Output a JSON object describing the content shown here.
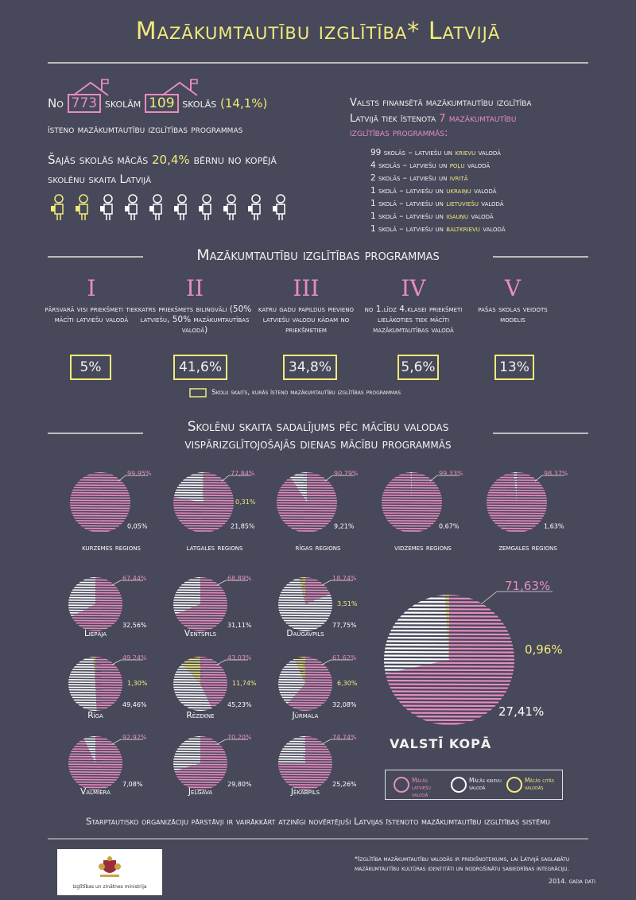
{
  "header": {
    "title": "Mazākumtautību izglītība* Latvijā"
  },
  "stats": {
    "no": "No",
    "schools_total": "773",
    "schools_total_suffix": "skolām",
    "schools_minority": "109",
    "schools_minority_suffix": "skolās",
    "schools_pct": "(14,1%)",
    "line2": "īsteno mazākumtautību izglītības programmas",
    "line3_a": "Šajās skolās mācās",
    "line3_pct": "20,4%",
    "line3_b": "bērnu no kopējā",
    "line4": "skolēnu skaita Latvijā"
  },
  "funding": {
    "line1": "Valsts finansētā mazākumtautību izglītība",
    "line2_a": "Latvijā tiek īstenota",
    "line2_num": "7",
    "line2_b": "mazākumtautību",
    "line3": "izglītības programmās:",
    "items": [
      {
        "pre": "99 skolās – latviešu un",
        "lang": "krievu",
        "post": "valodā"
      },
      {
        "pre": "4 skolās – latviešu un",
        "lang": "poļu",
        "post": "valodā"
      },
      {
        "pre": "2 skolās – latviešu un",
        "lang": "ivritā",
        "post": ""
      },
      {
        "pre": "1 skolā – latviešu un",
        "lang": "ukraiņu",
        "post": "valodā"
      },
      {
        "pre": "1 skolā – latviešu un",
        "lang": "lietuviešu",
        "post": "valodā"
      },
      {
        "pre": "1 skolā – latviešu un",
        "lang": "igauņu",
        "post": "valodā"
      },
      {
        "pre": "1 skolā – latviešu un",
        "lang": "baltkrievu",
        "post": "valodā"
      }
    ]
  },
  "programs": {
    "title": "Mazākumtautību izglītības programmas",
    "items": [
      {
        "roman": "I",
        "desc": "pārsvarā visi priekšmeti tiek mācīti latviešu valodā",
        "pct": "5%"
      },
      {
        "roman": "II",
        "desc": "katrs priekšmets bilingvāli (50% latviešu, 50% mazākumtautības valodā)",
        "pct": "41,6%"
      },
      {
        "roman": "III",
        "desc": "katru gadu papildus pievieno latviešu valodu kādam no priekšmetiem",
        "pct": "34,8%"
      },
      {
        "roman": "IV",
        "desc": "no 1.līdz 4.klasei priekšmeti lielākoties tiek mācīti mazākumtautības valodā",
        "pct": "5,6%"
      },
      {
        "roman": "V",
        "desc": "pašas skolas veidots modelis",
        "pct": "13%"
      }
    ],
    "legend": "Skolu skaits, kurās īsteno mazākumtautību izglītības programmas"
  },
  "distribution": {
    "title1": "Skolēnu skaita sadalījums pēc mācību valodas",
    "title2": "vispārizglītojošajās dienas mācību programmās",
    "total_label": "VALSTĪ KOPĀ",
    "legend": {
      "lv": "Mācās latviešu valodā",
      "ru": "Mācās krievu valodā",
      "other": "Mācās citās valodās"
    }
  },
  "chart_data": {
    "type": "pie",
    "series_names": [
      "Mācās latviešu valodā",
      "Mācās krievu valodā",
      "Mācās citās valodās"
    ],
    "charts": [
      {
        "name": "kurzemes regions",
        "values": [
          99.95,
          0.05,
          0
        ],
        "labels": [
          "99,95%",
          "0,05%",
          ""
        ]
      },
      {
        "name": "latgales regions",
        "values": [
          77.84,
          21.85,
          0.31
        ],
        "labels": [
          "77,84%",
          "21,85%",
          "0,31%"
        ]
      },
      {
        "name": "rīgas regions",
        "values": [
          90.79,
          9.21,
          0
        ],
        "labels": [
          "90,79%",
          "9,21%",
          ""
        ]
      },
      {
        "name": "vidzemes regions",
        "values": [
          99.33,
          0.67,
          0
        ],
        "labels": [
          "99,33%",
          "0,67%",
          ""
        ]
      },
      {
        "name": "zemgales regions",
        "values": [
          98.37,
          1.63,
          0
        ],
        "labels": [
          "98,37%",
          "1,63%",
          ""
        ]
      },
      {
        "name": "Liepāja",
        "values": [
          67.44,
          32.56,
          0
        ],
        "labels": [
          "67,44%",
          "32,56%",
          ""
        ]
      },
      {
        "name": "Ventspils",
        "values": [
          68.89,
          31.11,
          0
        ],
        "labels": [
          "68,89%",
          "31,11%",
          ""
        ]
      },
      {
        "name": "Daugavpils",
        "values": [
          18.74,
          77.75,
          3.51
        ],
        "labels": [
          "18,74%",
          "77,75%",
          "3,51%"
        ]
      },
      {
        "name": "Rīga",
        "values": [
          49.24,
          49.46,
          1.3
        ],
        "labels": [
          "49,24%",
          "49,46%",
          "1,30%"
        ]
      },
      {
        "name": "Rēzekne",
        "values": [
          43.03,
          45.23,
          11.74
        ],
        "labels": [
          "43,03%",
          "45,23%",
          "11,74%"
        ]
      },
      {
        "name": "Jūrmala",
        "values": [
          61.62,
          32.08,
          6.3
        ],
        "labels": [
          "61,62%",
          "32,08%",
          "6,30%"
        ]
      },
      {
        "name": "Valmiera",
        "values": [
          92.92,
          7.08,
          0
        ],
        "labels": [
          "92,92%",
          "7,08%",
          ""
        ]
      },
      {
        "name": "Jelgava",
        "values": [
          70.2,
          29.8,
          0
        ],
        "labels": [
          "70,20%",
          "29,80%",
          ""
        ]
      },
      {
        "name": "Jēkabpils",
        "values": [
          74.74,
          25.26,
          0
        ],
        "labels": [
          "74,74%",
          "25,26%",
          ""
        ]
      },
      {
        "name": "VALSTĪ KOPĀ",
        "values": [
          71.63,
          27.41,
          0.96
        ],
        "labels": [
          "71,63%",
          "27,41%",
          "0,96%"
        ]
      }
    ],
    "colors": {
      "lv": "#e88cc0",
      "ru": "#ffffff",
      "other": "#f2ea7a"
    }
  },
  "footer": {
    "statement": "Starptautisko organizāciju pārstāvji ir vairākkārt atzinīgi novērtējuši Latvijas īstenoto mazākumtautību izglītības sistēmu",
    "note1": "*Izglītība mazākumtautību valodās ir priekšnoteikums, lai Latvijā saglabātu",
    "note2": "mazākumtautību kultūras identitāti un nodrošinātu sabiedrības integrāciju.",
    "year": "2014. gada dati",
    "ministry": "Izglītības un zinātnes ministrija"
  }
}
